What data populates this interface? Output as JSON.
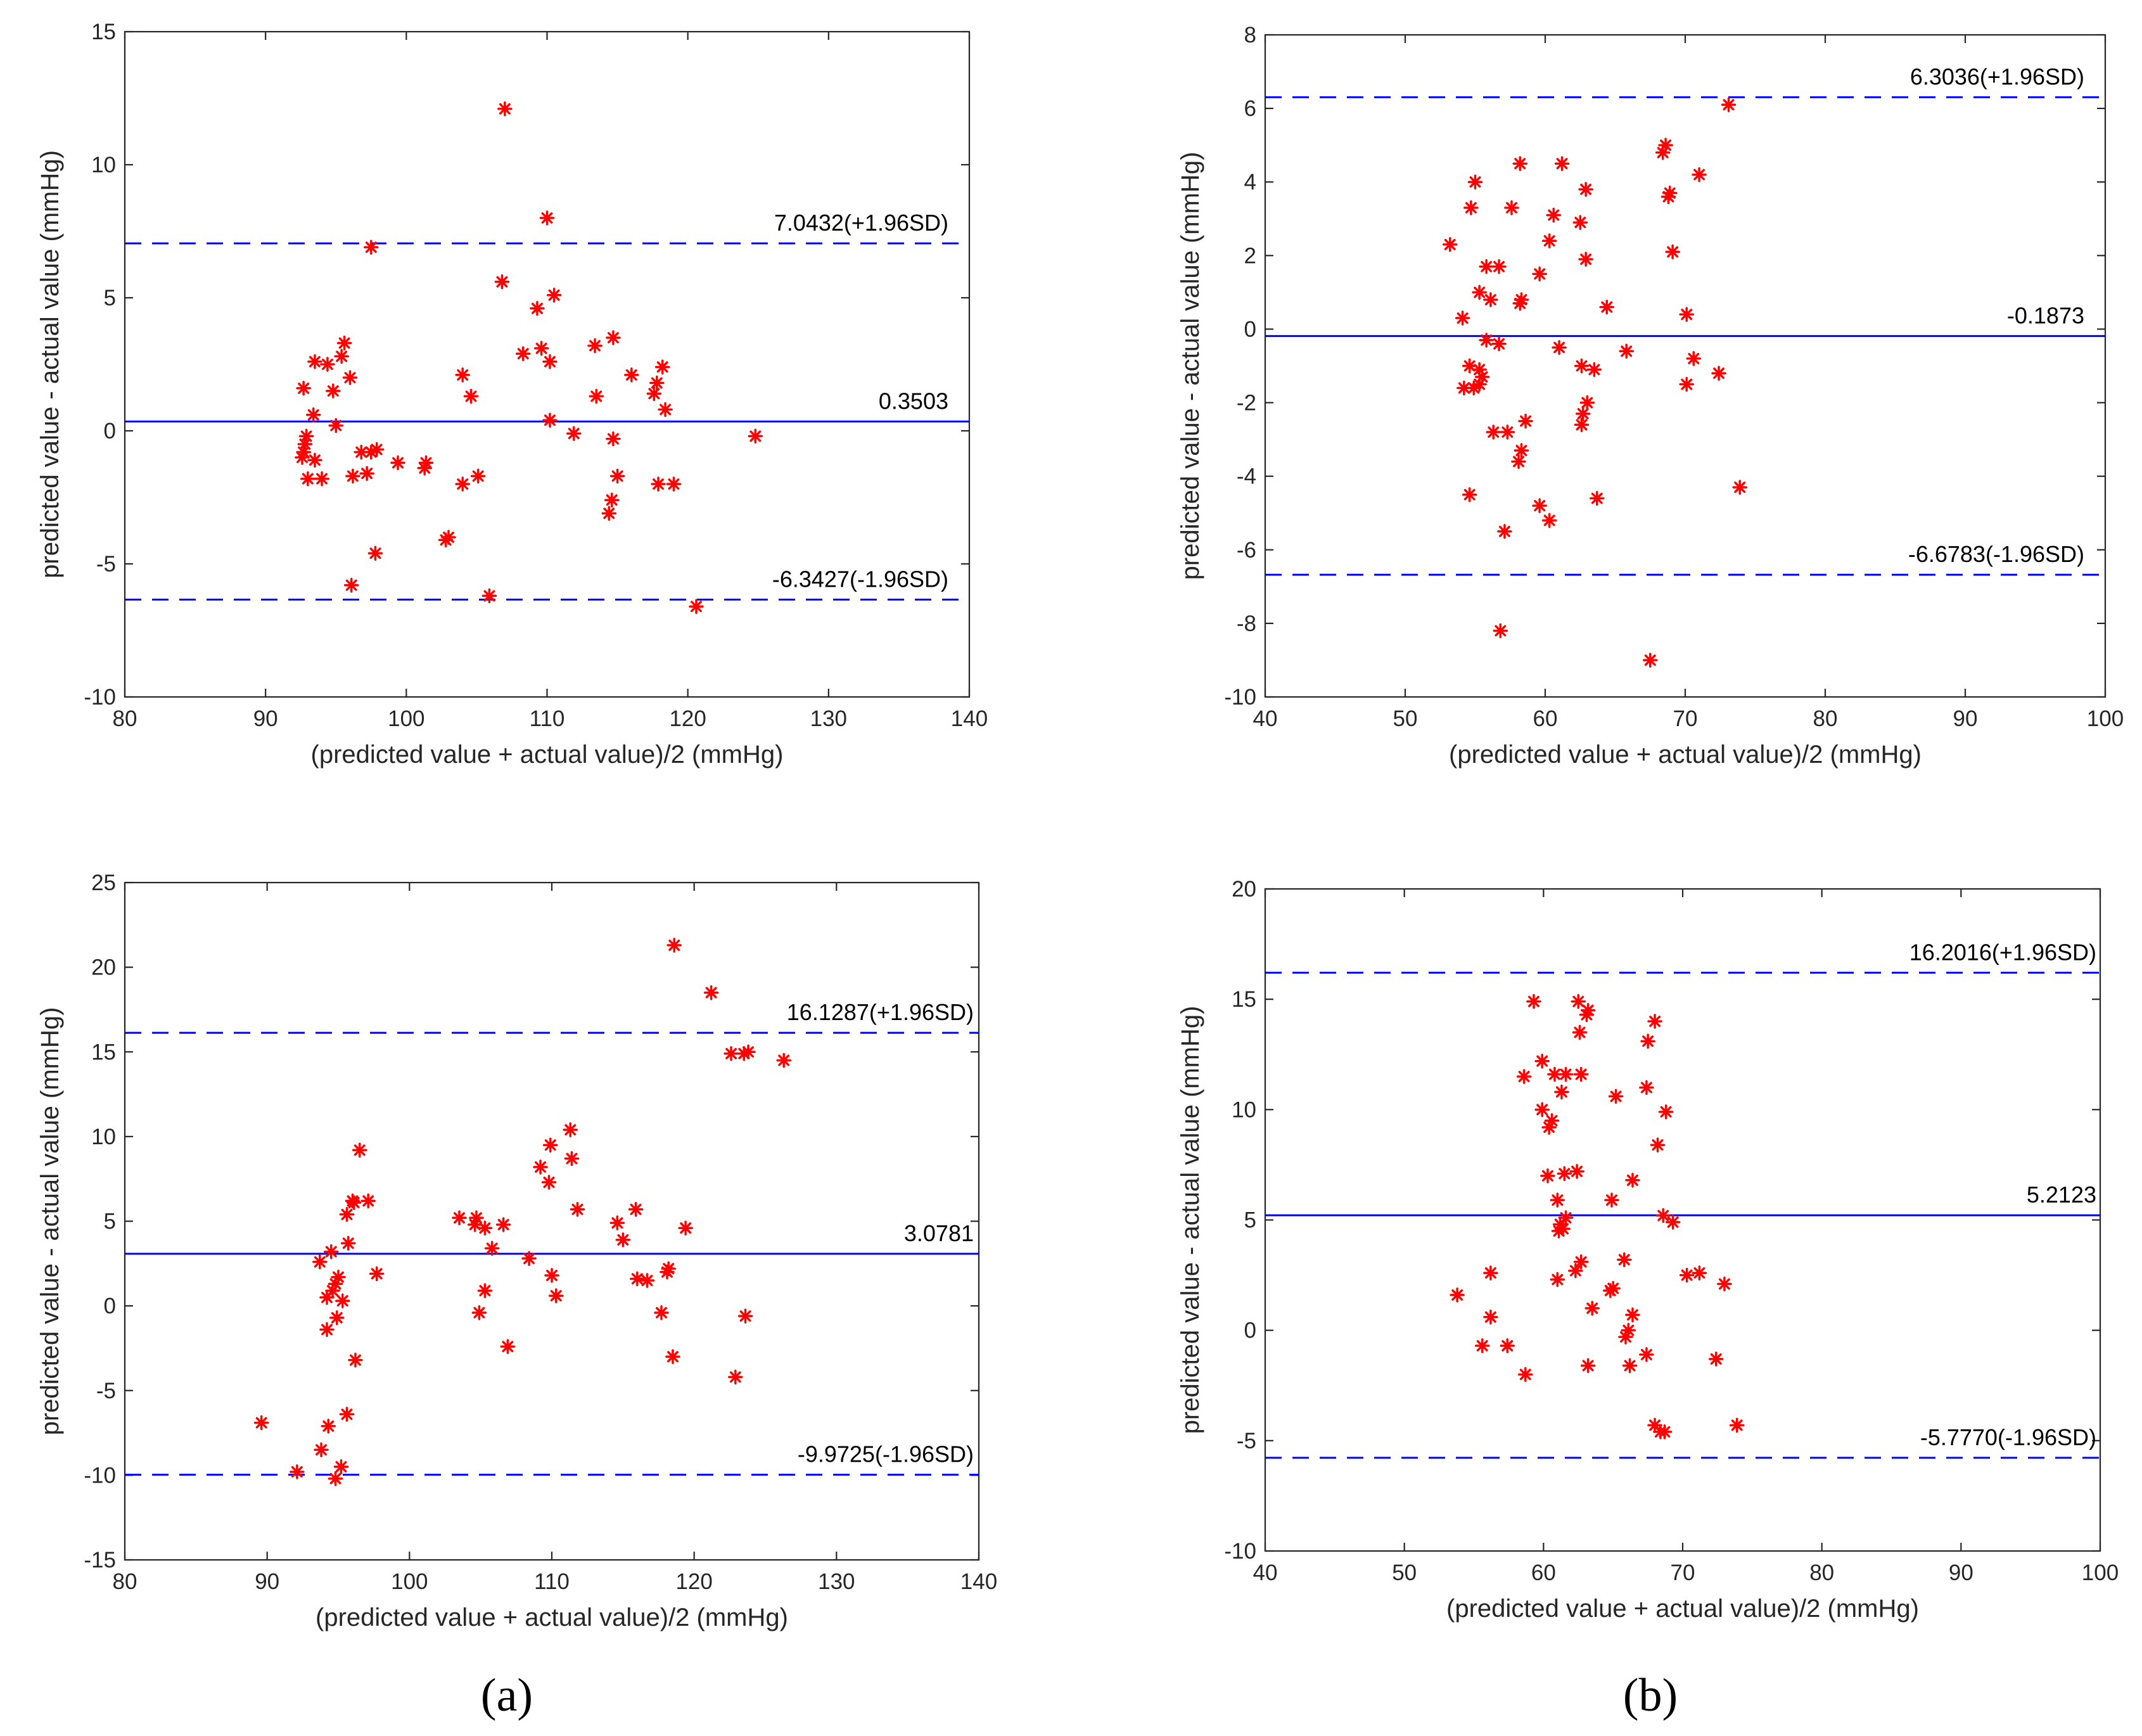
{
  "figure": {
    "panel_labels": [
      "(a)",
      "(b)"
    ],
    "colors": {
      "points": "#ff0000",
      "lines": "#0000ff",
      "axes": "#262626"
    }
  },
  "chart_data": [
    {
      "type": "scatter",
      "title": "",
      "xlabel": "(predicted value + actual value)/2 (mmHg)",
      "ylabel": "predicted value - actual value (mmHg)",
      "xlim": [
        80,
        140
      ],
      "ylim": [
        -10,
        15
      ],
      "xticks": [
        80,
        90,
        100,
        110,
        120,
        130,
        140
      ],
      "yticks": [
        -10,
        -5,
        0,
        5,
        10,
        15
      ],
      "reference_lines": [
        {
          "y": 7.0432,
          "style": "dashed",
          "label": "7.0432(+1.96SD)"
        },
        {
          "y": 0.3503,
          "style": "solid",
          "label": "0.3503"
        },
        {
          "y": -6.3427,
          "style": "dashed",
          "label": "-6.3427(-1.96SD)"
        }
      ],
      "points": [
        [
          107.0,
          12.1
        ],
        [
          110.0,
          8.0
        ],
        [
          97.5,
          6.9
        ],
        [
          106.8,
          5.6
        ],
        [
          110.5,
          5.1
        ],
        [
          109.3,
          4.6
        ],
        [
          108.3,
          2.9
        ],
        [
          109.6,
          3.1
        ],
        [
          110.2,
          2.6
        ],
        [
          113.4,
          3.2
        ],
        [
          114.7,
          3.5
        ],
        [
          116.0,
          2.1
        ],
        [
          117.6,
          1.4
        ],
        [
          117.8,
          1.8
        ],
        [
          118.2,
          2.4
        ],
        [
          118.4,
          0.8
        ],
        [
          104.0,
          2.1
        ],
        [
          104.6,
          1.3
        ],
        [
          110.2,
          0.4
        ],
        [
          111.9,
          -0.1
        ],
        [
          113.5,
          1.3
        ],
        [
          114.7,
          -0.3
        ],
        [
          115.0,
          -1.7
        ],
        [
          114.6,
          -2.6
        ],
        [
          114.4,
          -3.1
        ],
        [
          117.9,
          -2.0
        ],
        [
          119.0,
          -2.0
        ],
        [
          124.8,
          -0.2
        ],
        [
          120.6,
          -6.6
        ],
        [
          105.9,
          -6.2
        ],
        [
          105.1,
          -1.7
        ],
        [
          104.0,
          -2.0
        ],
        [
          102.8,
          -4.1
        ],
        [
          103.0,
          -4.0
        ],
        [
          101.3,
          -1.4
        ],
        [
          101.4,
          -1.2
        ],
        [
          99.4,
          -1.2
        ],
        [
          97.9,
          -0.7
        ],
        [
          97.5,
          -0.8
        ],
        [
          96.8,
          -0.8
        ],
        [
          97.2,
          -1.6
        ],
        [
          96.2,
          -1.7
        ],
        [
          97.8,
          -4.6
        ],
        [
          96.1,
          -5.8
        ],
        [
          95.6,
          3.3
        ],
        [
          95.4,
          2.8
        ],
        [
          96.0,
          2.0
        ],
        [
          94.4,
          2.5
        ],
        [
          93.5,
          2.6
        ],
        [
          92.7,
          1.6
        ],
        [
          94.8,
          1.5
        ],
        [
          93.4,
          0.6
        ],
        [
          95.0,
          0.2
        ],
        [
          92.9,
          -0.2
        ],
        [
          92.8,
          -0.5
        ],
        [
          92.7,
          -0.8
        ],
        [
          92.6,
          -1.0
        ],
        [
          93.5,
          -1.1
        ],
        [
          93.0,
          -1.8
        ],
        [
          94.0,
          -1.8
        ]
      ]
    },
    {
      "type": "scatter",
      "title": "",
      "xlabel": "(predicted value + actual value)/2 (mmHg)",
      "ylabel": "predicted value - actual value (mmHg)",
      "xlim": [
        40,
        100
      ],
      "ylim": [
        -10,
        8
      ],
      "xticks": [
        40,
        50,
        60,
        70,
        80,
        90,
        100
      ],
      "yticks": [
        -10,
        -8,
        -6,
        -4,
        -2,
        0,
        2,
        4,
        6,
        8
      ],
      "reference_lines": [
        {
          "y": 6.3036,
          "style": "dashed",
          "label": "6.3036(+1.96SD)"
        },
        {
          "y": -0.1873,
          "style": "solid",
          "label": "-0.1873"
        },
        {
          "y": -6.6783,
          "style": "dashed",
          "label": "-6.6783(-1.96SD)"
        }
      ],
      "points": [
        [
          73.1,
          6.1
        ],
        [
          68.6,
          5.0
        ],
        [
          68.4,
          4.8
        ],
        [
          71.0,
          4.2
        ],
        [
          68.8,
          3.6
        ],
        [
          68.9,
          3.7
        ],
        [
          69.1,
          2.1
        ],
        [
          70.1,
          0.4
        ],
        [
          70.6,
          -0.8
        ],
        [
          70.1,
          -1.5
        ],
        [
          72.4,
          -1.2
        ],
        [
          73.9,
          -4.3
        ],
        [
          67.5,
          -9.0
        ],
        [
          58.2,
          4.5
        ],
        [
          61.2,
          4.5
        ],
        [
          55.0,
          4.0
        ],
        [
          62.9,
          3.8
        ],
        [
          54.7,
          3.3
        ],
        [
          57.6,
          3.3
        ],
        [
          60.6,
          3.1
        ],
        [
          62.5,
          2.9
        ],
        [
          60.3,
          2.4
        ],
        [
          53.2,
          2.3
        ],
        [
          62.9,
          1.9
        ],
        [
          55.8,
          1.7
        ],
        [
          56.7,
          1.7
        ],
        [
          59.6,
          1.5
        ],
        [
          55.3,
          1.0
        ],
        [
          56.1,
          0.8
        ],
        [
          58.3,
          0.8
        ],
        [
          58.2,
          0.7
        ],
        [
          64.4,
          0.6
        ],
        [
          54.1,
          0.3
        ],
        [
          65.8,
          -0.6
        ],
        [
          61.0,
          -0.5
        ],
        [
          55.8,
          -0.3
        ],
        [
          56.7,
          -0.4
        ],
        [
          63.5,
          -1.1
        ],
        [
          62.6,
          -1.0
        ],
        [
          54.6,
          -1.0
        ],
        [
          55.3,
          -1.1
        ],
        [
          55.5,
          -1.3
        ],
        [
          55.3,
          -1.5
        ],
        [
          54.9,
          -1.6
        ],
        [
          54.2,
          -1.6
        ],
        [
          63.0,
          -2.0
        ],
        [
          62.7,
          -2.3
        ],
        [
          62.6,
          -2.6
        ],
        [
          58.6,
          -2.5
        ],
        [
          56.3,
          -2.8
        ],
        [
          57.3,
          -2.8
        ],
        [
          58.3,
          -3.3
        ],
        [
          58.1,
          -3.6
        ],
        [
          63.7,
          -4.6
        ],
        [
          54.6,
          -4.5
        ],
        [
          59.6,
          -4.8
        ],
        [
          60.3,
          -5.2
        ],
        [
          57.1,
          -5.5
        ],
        [
          56.8,
          -8.2
        ]
      ]
    },
    {
      "type": "scatter",
      "title": "",
      "xlabel": "(predicted value + actual value)/2 (mmHg)",
      "ylabel": "predicted value - actual value (mmHg)",
      "xlim": [
        80,
        140
      ],
      "ylim": [
        -15,
        25
      ],
      "xticks": [
        80,
        90,
        100,
        110,
        120,
        130,
        140
      ],
      "yticks": [
        -15,
        -10,
        -5,
        0,
        5,
        10,
        15,
        20,
        25
      ],
      "reference_lines": [
        {
          "y": 16.1287,
          "style": "dashed",
          "label": "16.1287(+1.96SD)"
        },
        {
          "y": 3.0781,
          "style": "solid",
          "label": "3.0781"
        },
        {
          "y": -9.9725,
          "style": "dashed",
          "label": "-9.9725(-1.96SD)"
        }
      ],
      "points": [
        [
          118.6,
          21.3
        ],
        [
          121.2,
          18.5
        ],
        [
          122.6,
          14.9
        ],
        [
          123.5,
          14.9
        ],
        [
          123.8,
          15.0
        ],
        [
          126.3,
          14.5
        ],
        [
          111.3,
          10.4
        ],
        [
          109.9,
          9.5
        ],
        [
          111.4,
          8.7
        ],
        [
          109.2,
          8.2
        ],
        [
          109.8,
          7.3
        ],
        [
          111.8,
          5.7
        ],
        [
          115.9,
          5.7
        ],
        [
          103.5,
          5.2
        ],
        [
          104.7,
          5.2
        ],
        [
          106.6,
          4.8
        ],
        [
          114.6,
          4.9
        ],
        [
          119.4,
          4.6
        ],
        [
          104.6,
          4.8
        ],
        [
          105.3,
          4.6
        ],
        [
          115.0,
          3.9
        ],
        [
          105.8,
          3.4
        ],
        [
          108.4,
          2.8
        ],
        [
          110.0,
          1.8
        ],
        [
          116.0,
          1.6
        ],
        [
          116.7,
          1.5
        ],
        [
          118.1,
          2.0
        ],
        [
          118.2,
          2.2
        ],
        [
          110.3,
          0.6
        ],
        [
          105.3,
          0.9
        ],
        [
          104.9,
          -0.4
        ],
        [
          117.7,
          -0.4
        ],
        [
          123.6,
          -0.6
        ],
        [
          106.9,
          -2.4
        ],
        [
          118.5,
          -3.0
        ],
        [
          122.9,
          -4.2
        ],
        [
          96.5,
          9.2
        ],
        [
          97.1,
          6.2
        ],
        [
          96.0,
          6.2
        ],
        [
          96.1,
          6.1
        ],
        [
          95.6,
          5.4
        ],
        [
          97.7,
          1.9
        ],
        [
          95.7,
          3.7
        ],
        [
          94.5,
          3.2
        ],
        [
          93.7,
          2.6
        ],
        [
          95.0,
          1.7
        ],
        [
          94.8,
          1.3
        ],
        [
          94.6,
          0.9
        ],
        [
          94.2,
          0.5
        ],
        [
          95.3,
          0.3
        ],
        [
          94.9,
          -0.7
        ],
        [
          94.2,
          -1.4
        ],
        [
          96.2,
          -3.2
        ],
        [
          95.6,
          -6.4
        ],
        [
          94.3,
          -7.1
        ],
        [
          89.6,
          -6.9
        ],
        [
          93.8,
          -8.5
        ],
        [
          95.2,
          -9.5
        ],
        [
          92.1,
          -9.8
        ],
        [
          94.8,
          -10.2
        ]
      ]
    },
    {
      "type": "scatter",
      "title": "",
      "xlabel": "(predicted value + actual value)/2 (mmHg)",
      "ylabel": "predicted value - actual value (mmHg)",
      "xlim": [
        40,
        100
      ],
      "ylim": [
        -10,
        20
      ],
      "xticks": [
        40,
        50,
        60,
        70,
        80,
        90,
        100
      ],
      "yticks": [
        -10,
        -5,
        0,
        5,
        10,
        15,
        20
      ],
      "reference_lines": [
        {
          "y": 16.2016,
          "style": "dashed",
          "label": "16.2016(+1.96SD)"
        },
        {
          "y": 5.2123,
          "style": "solid",
          "label": "5.2123"
        },
        {
          "y": -5.777,
          "style": "dashed",
          "label": "-5.7770(-1.96SD)"
        }
      ],
      "points": [
        [
          59.3,
          14.9
        ],
        [
          62.5,
          14.9
        ],
        [
          63.2,
          14.5
        ],
        [
          63.1,
          14.3
        ],
        [
          62.6,
          13.5
        ],
        [
          68.0,
          14.0
        ],
        [
          67.5,
          13.1
        ],
        [
          59.9,
          12.2
        ],
        [
          60.8,
          11.6
        ],
        [
          58.6,
          11.5
        ],
        [
          61.6,
          11.6
        ],
        [
          62.7,
          11.6
        ],
        [
          67.4,
          11.0
        ],
        [
          61.3,
          10.8
        ],
        [
          65.2,
          10.6
        ],
        [
          59.9,
          10.0
        ],
        [
          68.8,
          9.9
        ],
        [
          60.6,
          9.5
        ],
        [
          60.4,
          9.2
        ],
        [
          68.2,
          8.4
        ],
        [
          60.3,
          7.0
        ],
        [
          61.5,
          7.1
        ],
        [
          62.4,
          7.2
        ],
        [
          66.4,
          6.8
        ],
        [
          61.0,
          5.9
        ],
        [
          64.9,
          5.9
        ],
        [
          61.6,
          5.1
        ],
        [
          68.6,
          5.2
        ],
        [
          69.3,
          4.9
        ],
        [
          61.2,
          4.8
        ],
        [
          61.1,
          4.5
        ],
        [
          61.4,
          4.6
        ],
        [
          62.7,
          3.1
        ],
        [
          65.8,
          3.2
        ],
        [
          62.3,
          2.7
        ],
        [
          61.0,
          2.3
        ],
        [
          70.3,
          2.5
        ],
        [
          71.2,
          2.6
        ],
        [
          73.0,
          2.1
        ],
        [
          56.2,
          2.6
        ],
        [
          53.8,
          1.6
        ],
        [
          65.0,
          1.9
        ],
        [
          64.8,
          1.8
        ],
        [
          63.5,
          1.0
        ],
        [
          66.4,
          0.7
        ],
        [
          56.2,
          0.6
        ],
        [
          66.1,
          0.0
        ],
        [
          65.9,
          -0.3
        ],
        [
          55.6,
          -0.7
        ],
        [
          57.4,
          -0.7
        ],
        [
          67.4,
          -1.1
        ],
        [
          72.4,
          -1.3
        ],
        [
          58.7,
          -2.0
        ],
        [
          63.2,
          -1.6
        ],
        [
          66.2,
          -1.6
        ],
        [
          68.0,
          -4.3
        ],
        [
          68.7,
          -4.6
        ],
        [
          68.4,
          -4.6
        ],
        [
          73.9,
          -4.3
        ]
      ]
    }
  ]
}
